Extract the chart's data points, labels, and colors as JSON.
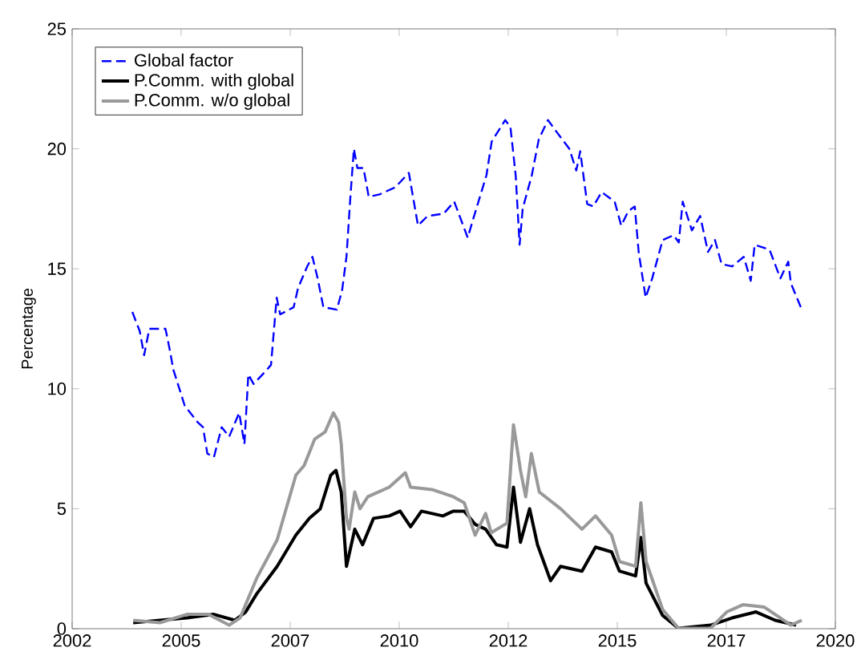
{
  "chart_data": {
    "type": "line",
    "ylabel": "Percentage",
    "xlim": [
      2002.5,
      2020
    ],
    "ylim": [
      0,
      25
    ],
    "xticks": [
      {
        "value": 2002.5,
        "label": "2002"
      },
      2005,
      {
        "value": 2007.5,
        "label": "2007"
      },
      2010,
      {
        "value": 2012.5,
        "label": "2012"
      },
      2015,
      {
        "value": 2017.5,
        "label": "2017"
      },
      2020
    ],
    "yticks": [
      0,
      5,
      10,
      15,
      20,
      25
    ],
    "grid": false,
    "legend": "top left",
    "series": [
      {
        "name": "Global factor",
        "color": "#0000ff",
        "line_style": "dashed",
        "x": [
          2003.88,
          2004.05,
          2004.15,
          2004.27,
          2004.64,
          2004.73,
          2004.82,
          2005.08,
          2005.38,
          2005.5,
          2005.6,
          2005.75,
          2005.93,
          2006.1,
          2006.33,
          2006.45,
          2006.54,
          2006.66,
          2006.97,
          2007.06,
          2007.19,
          2007.27,
          2007.58,
          2007.68,
          2007.89,
          2008.01,
          2008.13,
          2008.26,
          2008.57,
          2008.69,
          2008.79,
          2008.88,
          2008.96,
          2009.04,
          2009.18,
          2009.3,
          2009.55,
          2009.91,
          2010.22,
          2010.43,
          2010.65,
          2011.02,
          2011.26,
          2011.57,
          2011.7,
          2012.0,
          2012.12,
          2012.43,
          2012.55,
          2012.67,
          2012.76,
          2012.83,
          2013.04,
          2013.2,
          2013.41,
          2013.61,
          2013.9,
          2014.06,
          2014.15,
          2014.31,
          2014.45,
          2014.64,
          2014.94,
          2015.09,
          2015.25,
          2015.4,
          2015.49,
          2015.65,
          2015.8,
          2016.04,
          2016.29,
          2016.41,
          2016.5,
          2016.71,
          2016.9,
          2017.08,
          2017.24,
          2017.39,
          2017.63,
          2017.9,
          2018.06,
          2018.15,
          2018.49,
          2018.74,
          2018.92,
          2018.98,
          2019.23
        ],
        "values": [
          13.2,
          12.4,
          11.4,
          12.5,
          12.5,
          11.7,
          10.8,
          9.3,
          8.6,
          8.4,
          7.3,
          7.15,
          8.4,
          8.0,
          9.0,
          7.7,
          10.6,
          10.2,
          10.8,
          11.0,
          13.8,
          13.1,
          13.4,
          14.2,
          15.1,
          15.5,
          14.6,
          13.4,
          13.3,
          14.1,
          15.5,
          18.0,
          20.0,
          19.2,
          19.2,
          18.0,
          18.1,
          18.4,
          19.0,
          16.8,
          17.2,
          17.3,
          17.8,
          16.3,
          17.1,
          18.9,
          20.3,
          21.2,
          20.9,
          18.9,
          16.0,
          17.5,
          18.9,
          20.4,
          21.2,
          20.7,
          20.0,
          19.1,
          19.9,
          17.7,
          17.6,
          18.2,
          17.8,
          16.8,
          17.4,
          17.6,
          15.7,
          13.8,
          14.6,
          16.2,
          16.4,
          16.1,
          17.8,
          16.6,
          17.2,
          15.7,
          16.2,
          15.2,
          15.1,
          15.5,
          14.5,
          16.0,
          15.8,
          14.6,
          15.3,
          14.4,
          13.3
        ]
      },
      {
        "name": "P.Comm. with global",
        "color": "#000000",
        "line_style": "solid",
        "x": [
          2003.9,
          2004.51,
          2005.13,
          2005.75,
          2006.23,
          2006.48,
          2006.73,
          2007.2,
          2007.63,
          2007.94,
          2008.19,
          2008.43,
          2008.55,
          2008.67,
          2008.79,
          2008.98,
          2009.16,
          2009.41,
          2009.77,
          2010.02,
          2010.26,
          2010.51,
          2011.0,
          2011.24,
          2011.49,
          2011.74,
          2011.98,
          2012.23,
          2012.47,
          2012.62,
          2012.78,
          2012.99,
          2013.17,
          2013.47,
          2013.7,
          2014.19,
          2014.5,
          2014.87,
          2015.05,
          2015.42,
          2015.54,
          2015.66,
          2016.04,
          2016.4,
          2017.14,
          2017.63,
          2018.18,
          2018.62,
          2019.1
        ],
        "values": [
          0.25,
          0.35,
          0.45,
          0.6,
          0.35,
          0.7,
          1.45,
          2.6,
          3.9,
          4.6,
          5.0,
          6.4,
          6.6,
          5.7,
          2.6,
          4.15,
          3.5,
          4.6,
          4.7,
          4.9,
          4.25,
          4.9,
          4.7,
          4.9,
          4.9,
          4.35,
          4.15,
          3.5,
          3.4,
          5.9,
          3.6,
          5.0,
          3.5,
          2.0,
          2.6,
          2.4,
          3.4,
          3.2,
          2.4,
          2.2,
          3.8,
          1.9,
          0.55,
          0.02,
          0.15,
          0.45,
          0.7,
          0.35,
          0.15
        ]
      },
      {
        "name": "P.Comm. w/o global",
        "color": "#999999",
        "line_style": "solid",
        "x": [
          2003.9,
          2004.51,
          2005.13,
          2005.62,
          2006.1,
          2006.35,
          2006.73,
          2007.2,
          2007.63,
          2007.82,
          2008.06,
          2008.3,
          2008.49,
          2008.61,
          2008.67,
          2008.79,
          2008.85,
          2008.98,
          2009.1,
          2009.28,
          2009.77,
          2010.14,
          2010.26,
          2010.75,
          2011.24,
          2011.49,
          2011.74,
          2011.98,
          2012.11,
          2012.47,
          2012.62,
          2012.78,
          2012.9,
          2013.03,
          2013.21,
          2013.7,
          2014.19,
          2014.5,
          2014.87,
          2015.05,
          2015.42,
          2015.54,
          2015.66,
          2016.04,
          2016.4,
          2017.14,
          2017.51,
          2017.88,
          2018.37,
          2018.74,
          2018.98,
          2019.23
        ],
        "values": [
          0.35,
          0.25,
          0.6,
          0.6,
          0.15,
          0.45,
          2.1,
          3.7,
          6.4,
          6.8,
          7.9,
          8.2,
          9.0,
          8.6,
          7.7,
          4.6,
          4.15,
          5.7,
          5.0,
          5.5,
          5.9,
          6.5,
          5.9,
          5.8,
          5.5,
          5.25,
          3.9,
          4.8,
          4.0,
          4.4,
          8.5,
          6.6,
          5.5,
          7.3,
          5.7,
          5.0,
          4.15,
          4.7,
          3.9,
          2.8,
          2.6,
          5.25,
          2.8,
          0.8,
          0.02,
          0.02,
          0.7,
          1.0,
          0.9,
          0.45,
          0.15,
          0.35
        ]
      }
    ]
  }
}
